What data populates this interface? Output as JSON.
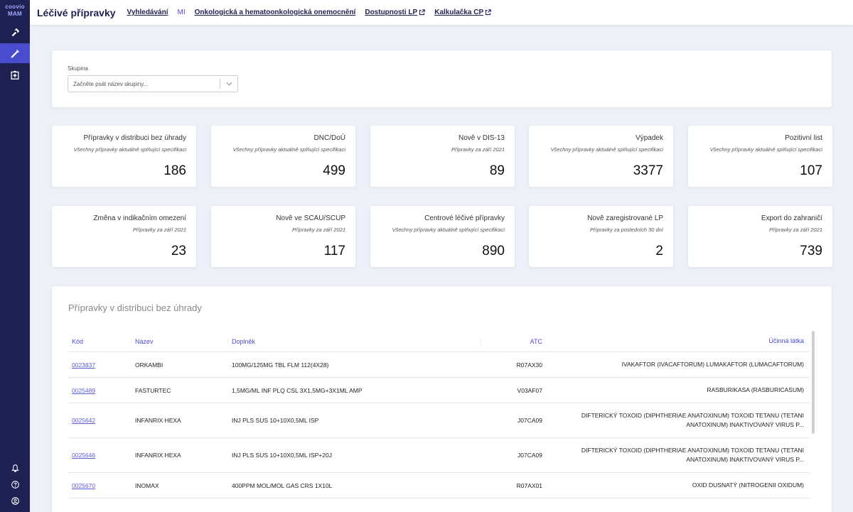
{
  "sidebar": {
    "logo_line1": "coovio",
    "logo_line2": "MAM",
    "items": [
      {
        "name": "hammer-icon",
        "active": false
      },
      {
        "name": "syringe-icon",
        "active": true
      },
      {
        "name": "hospital-icon",
        "active": false
      }
    ],
    "bottom": [
      {
        "name": "bell-icon"
      },
      {
        "name": "help-icon"
      },
      {
        "name": "user-icon"
      }
    ]
  },
  "topbar": {
    "title": "Léčivé přípravky",
    "links": [
      {
        "label": "Vyhledávání",
        "style": "underline",
        "external": false
      },
      {
        "label": "MI",
        "style": "plain",
        "external": false
      },
      {
        "label": "Onkologická a hematoonkologická onemocnění",
        "style": "underline",
        "external": false
      },
      {
        "label": "Dostupnosti LP",
        "style": "underline",
        "external": true
      },
      {
        "label": "Kalkulačka CP",
        "style": "underline",
        "external": true
      }
    ]
  },
  "filter": {
    "label": "Skupina",
    "placeholder": "Začněte psát název skupiny..."
  },
  "stats": [
    {
      "title": "Přípravky v distribuci bez úhrady",
      "subtitle": "Všechny přípravky aktuálně splňující specifikaci",
      "value": "186"
    },
    {
      "title": "DNC/DoÚ",
      "subtitle": "Všechny přípravky aktuálně splňující specifikaci",
      "value": "499"
    },
    {
      "title": "Nově v DIS-13",
      "subtitle": "Přípravky za září 2021",
      "value": "89"
    },
    {
      "title": "Výpadek",
      "subtitle": "Všechny přípravky aktuálně splňující specifikaci",
      "value": "3377"
    },
    {
      "title": "Pozitivní list",
      "subtitle": "Všechny přípravky aktuálně splňující specifikaci",
      "value": "107"
    },
    {
      "title": "Změna v indikačním omezení",
      "subtitle": "Přípravky za září 2021",
      "value": "23"
    },
    {
      "title": "Nově ve SCAU/SCUP",
      "subtitle": "Přípravky za září 2021",
      "value": "117"
    },
    {
      "title": "Centrové léčivé přípravky",
      "subtitle": "Všechny přípravky aktuálně splňující specifikaci",
      "value": "890"
    },
    {
      "title": "Nově zaregistrované LP",
      "subtitle": "Přípravky za posledních 30 dní",
      "value": "2"
    },
    {
      "title": "Export do zahraničí",
      "subtitle": "Přípravky za září 2021",
      "value": "739"
    }
  ],
  "table": {
    "title": "Přípravky v distribuci bez úhrady",
    "columns": [
      "Kód",
      "Název",
      "Doplněk",
      "ATC",
      "Účinná látka"
    ],
    "rows": [
      {
        "code": "0023837",
        "name": "ORKAMBI",
        "supplement": "100MG/125MG TBL FLM 112(4X28)",
        "atc": "R07AX30",
        "substance": "IVAKAFTOR (IVACAFTORUM) LUMAKAFTOR (LUMACAFTORUM)"
      },
      {
        "code": "0025489",
        "name": "FASTURTEC",
        "supplement": "1,5MG/ML INF PLQ CSL 3X1,5MG+3X1ML AMP",
        "atc": "V03AF07",
        "substance": "RASBURIKASA (RASBURICASUM)"
      },
      {
        "code": "0025642",
        "name": "INFANRIX HEXA",
        "supplement": "INJ PLS SUS 10+10X0,5ML ISP",
        "atc": "J07CA09",
        "substance": "DIFTERICKÝ TOXOID (DIPHTHERIAE ANATOXINUM) TOXOID TETANU (TETANI ANATOXINUM) INAKTIVOVANÝ VIRUS P..."
      },
      {
        "code": "0025646",
        "name": "INFANRIX HEXA",
        "supplement": "INJ PLS SUS 10+10X0,5ML ISP+20J",
        "atc": "J07CA09",
        "substance": "DIFTERICKÝ TOXOID (DIPHTHERIAE ANATOXINUM) TOXOID TETANU (TETANI ANATOXINUM) INAKTIVOVANÝ VIRUS P..."
      },
      {
        "code": "0025670",
        "name": "INOMAX",
        "supplement": "400PPM MOL/MOL GAS CRS 1X10L",
        "atc": "R07AX01",
        "substance": "OXID DUSNATÝ (NITROGENII OXIDUM)"
      }
    ]
  }
}
